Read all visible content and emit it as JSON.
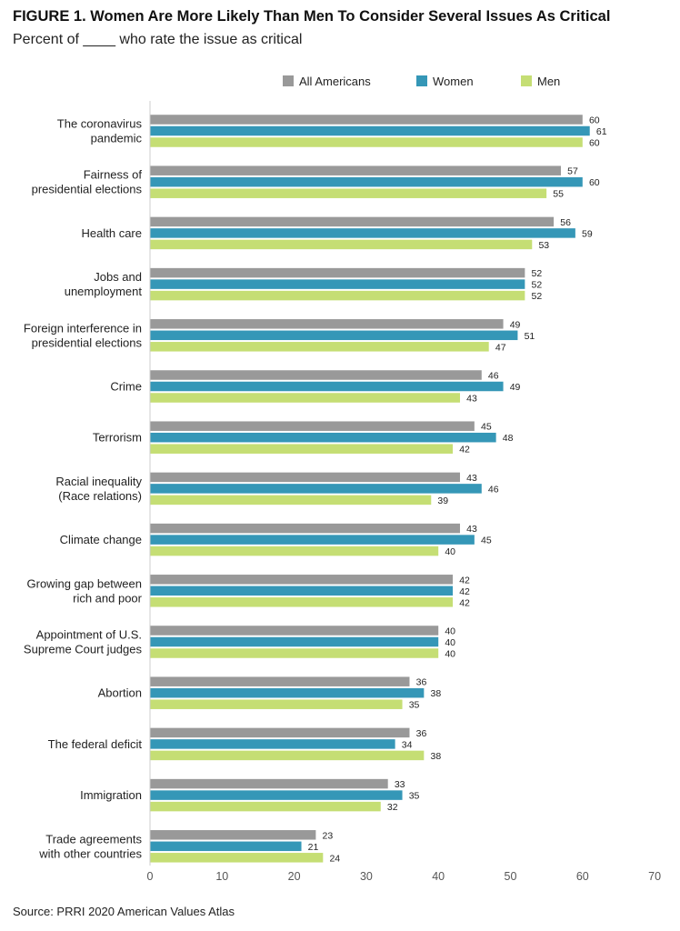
{
  "header": {
    "title": "FIGURE 1.  Women Are More Likely Than Men To Consider Several Issues As Critical",
    "subtitle": "Percent of ____ who rate the issue as critical"
  },
  "footer": {
    "source": "Source: PRRI 2020 American Values Atlas"
  },
  "colors": {
    "All Americans": "#999999",
    "Women": "#3597b7",
    "Men": "#c5de74"
  },
  "chart_data": {
    "type": "bar",
    "orientation": "horizontal",
    "title": "Women Are More Likely Than Men To Consider Several Issues As Critical",
    "subtitle": "Percent of ____ who rate the issue as critical",
    "categories": [
      [
        "The coronavirus",
        "pandemic"
      ],
      [
        "Fairness of",
        "presidential elections"
      ],
      [
        "Health care"
      ],
      [
        "Jobs and",
        "unemployment"
      ],
      [
        "Foreign interference in",
        "presidential elections"
      ],
      [
        "Crime"
      ],
      [
        "Terrorism"
      ],
      [
        "Racial inequality",
        "(Race relations)"
      ],
      [
        "Climate change"
      ],
      [
        "Growing gap between",
        "rich and poor"
      ],
      [
        "Appointment of U.S.",
        "Supreme Court judges"
      ],
      [
        "Abortion"
      ],
      [
        "The federal deficit"
      ],
      [
        "Immigration"
      ],
      [
        "Trade agreements",
        "with other countries"
      ]
    ],
    "series": [
      {
        "name": "All Americans",
        "values": [
          60,
          57,
          56,
          52,
          49,
          46,
          45,
          43,
          43,
          42,
          40,
          36,
          36,
          33,
          23
        ]
      },
      {
        "name": "Women",
        "values": [
          61,
          60,
          59,
          52,
          51,
          49,
          48,
          46,
          45,
          42,
          40,
          38,
          34,
          35,
          21
        ]
      },
      {
        "name": "Men",
        "values": [
          60,
          55,
          53,
          52,
          47,
          43,
          42,
          39,
          40,
          42,
          40,
          35,
          38,
          32,
          24
        ]
      }
    ],
    "xlim": [
      0,
      70
    ],
    "xticks": [
      0,
      10,
      20,
      30,
      40,
      50,
      60,
      70
    ],
    "legend_position": "top",
    "grid": false
  }
}
